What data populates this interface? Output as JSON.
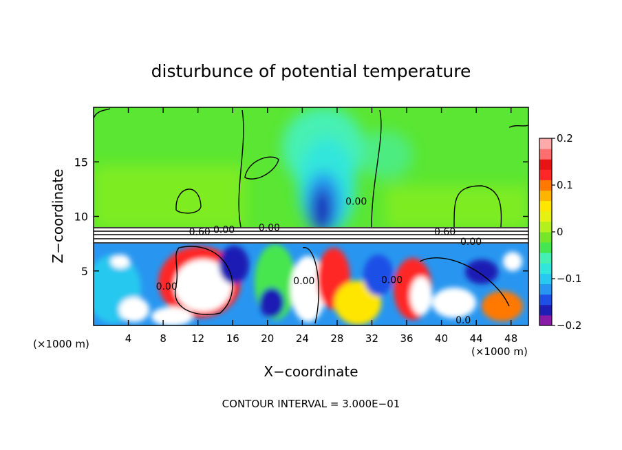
{
  "chart_data": {
    "type": "heatmap",
    "title": "disturbunce of potential temperature",
    "xlabel": "X−coordinate",
    "ylabel": "Z−coordinate",
    "x_unit_left": "(×1000 m)",
    "x_unit_right": "(×1000 m)",
    "xlim": [
      0,
      50
    ],
    "ylim": [
      0,
      20
    ],
    "x_ticks": [
      4,
      8,
      12,
      16,
      20,
      24,
      28,
      32,
      36,
      40,
      44,
      48
    ],
    "y_ticks": [
      5,
      10,
      15
    ],
    "colorbar": {
      "min": -0.2,
      "max": 0.2,
      "tick_values": [
        0.2,
        0.1,
        0,
        -0.1,
        -0.2
      ],
      "tick_labels": [
        "0.2",
        "0.1",
        "0",
        "−0.1",
        "−0.2"
      ],
      "colors": [
        "#8a1aa8",
        "#1e1eb4",
        "#1e50e6",
        "#2896f0",
        "#28c8f0",
        "#32e6dc",
        "#46f0b4",
        "#46e650",
        "#78e628",
        "#b4f01e",
        "#e6f014",
        "#ffe600",
        "#ffb400",
        "#ff7800",
        "#ff2828",
        "#e61414",
        "#ff6e6e",
        "#ffaaaa"
      ]
    },
    "contour_labels": [
      {
        "x": 12.2,
        "z": 8.6,
        "text": "0.60"
      },
      {
        "x": 15.0,
        "z": 8.8,
        "text": "0.00"
      },
      {
        "x": 20.2,
        "z": 9.0,
        "text": "0.00"
      },
      {
        "x": 30.2,
        "z": 11.4,
        "text": "0.00"
      },
      {
        "x": 40.4,
        "z": 8.6,
        "text": "0.60"
      },
      {
        "x": 43.4,
        "z": 7.7,
        "text": "0.00"
      },
      {
        "x": 8.4,
        "z": 3.6,
        "text": "0.00"
      },
      {
        "x": 24.2,
        "z": 4.1,
        "text": "0.00"
      },
      {
        "x": 34.3,
        "z": 4.2,
        "text": "0.00"
      },
      {
        "x": 42.5,
        "z": 0.5,
        "text": "0.0"
      }
    ],
    "footer": "CONTOUR INTERVAL = 3.000E−01"
  }
}
